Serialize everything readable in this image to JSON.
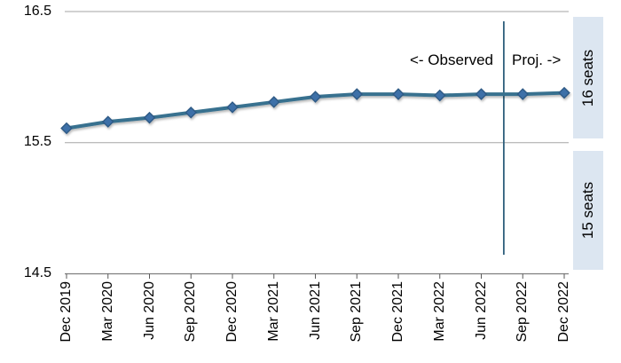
{
  "chart_data": {
    "type": "line",
    "marker": "diamond",
    "categories": [
      "Dec 2019",
      "Mar 2020",
      "Jun 2020",
      "Sep 2020",
      "Dec 2020",
      "Mar 2021",
      "Jun 2021",
      "Sep 2021",
      "Dec 2021",
      "Mar 2022",
      "Jun 2022",
      "Sep 2022",
      "Dec 2022"
    ],
    "values": [
      15.61,
      15.66,
      15.69,
      15.73,
      15.77,
      15.81,
      15.85,
      15.87,
      15.87,
      15.86,
      15.87,
      15.87,
      15.88
    ],
    "xlabel": "",
    "ylabel": "",
    "ylim": [
      14.5,
      16.5
    ],
    "ytick_labels": [
      "16.5",
      "15.5",
      "14.5"
    ],
    "grid": "horizontal",
    "legend": "none",
    "annotations": {
      "observed_label": "<- Observed",
      "projection_label": "Proj. ->",
      "divider_between": [
        "Jun 2022",
        "Sep 2022"
      ]
    },
    "right_bands": [
      {
        "label": "16 seats",
        "value_range": [
          15.5,
          16.5
        ]
      },
      {
        "label": "15 seats",
        "value_range": [
          14.5,
          15.5
        ]
      }
    ],
    "colors": {
      "line": "#38718F",
      "marker_fill": "#3E6FA8",
      "marker_border": "#2E5A85",
      "gridline": "#A6A6A6",
      "axis": "#7F7F7F",
      "tick": "#595959",
      "divider": "#2E5F7C",
      "band_background": "#DCE6F1",
      "text": "#000000"
    }
  }
}
